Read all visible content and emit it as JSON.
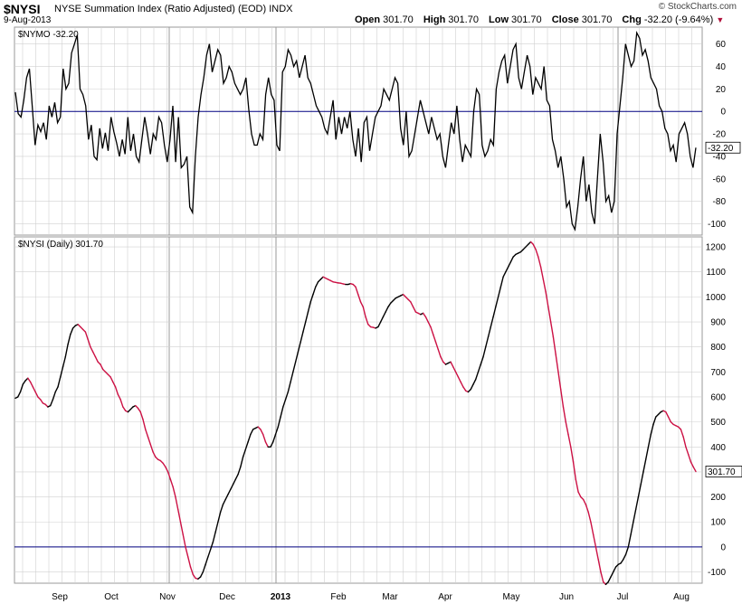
{
  "header": {
    "symbol": "$NYSI",
    "name": "NYSE Summation Index (Ratio Adjusted) (EOD)",
    "exchange": "INDX",
    "date": "9-Aug-2013",
    "brand": "© StockCharts.com",
    "open_label": "Open",
    "open": "301.70",
    "high_label": "High",
    "high": "301.70",
    "low_label": "Low",
    "low": "301.70",
    "close_label": "Close",
    "close": "301.70",
    "chg_label": "Chg",
    "chg": "-32.20 (-9.64%)"
  },
  "colors": {
    "rising": "#000000",
    "falling": "#cc1144",
    "zero_line": "#000080",
    "grid": "#d0d0d0",
    "frame": "#9a9a9a"
  },
  "chart_data": [
    {
      "type": "line",
      "title": "$NYMO -32.20",
      "ylim": [
        -110,
        75
      ],
      "y_ticks": [
        60,
        40,
        20,
        0,
        -20,
        -40,
        -60,
        -80,
        -100
      ],
      "last_value_label": "-32.20",
      "x_labels": [
        "Sep",
        "Oct",
        "Nov",
        "Dec",
        "2013",
        "Feb",
        "Mar",
        "Apr",
        "May",
        "Jun",
        "Jul",
        "Aug"
      ],
      "grid": true,
      "series": [
        {
          "name": "$NYMO",
          "values": [
            17,
            -2,
            -5,
            10,
            30,
            38,
            5,
            -30,
            -12,
            -18,
            -10,
            -25,
            5,
            -5,
            8,
            -10,
            -5,
            38,
            20,
            25,
            52,
            60,
            68,
            20,
            15,
            5,
            -25,
            -12,
            -40,
            -43,
            -15,
            -33,
            -19,
            -35,
            -5,
            -18,
            -28,
            -40,
            -25,
            -38,
            -5,
            -35,
            -20,
            -40,
            -45,
            -25,
            -5,
            -20,
            -38,
            -20,
            -25,
            -5,
            -10,
            -30,
            -45,
            -25,
            5,
            -45,
            -5,
            -50,
            -47,
            -40,
            -85,
            -90,
            -40,
            -5,
            15,
            30,
            50,
            60,
            35,
            45,
            55,
            50,
            25,
            30,
            40,
            35,
            25,
            20,
            15,
            20,
            30,
            2,
            -20,
            -30,
            -30,
            -20,
            -25,
            15,
            30,
            15,
            10,
            -30,
            -35,
            35,
            40,
            55,
            50,
            40,
            45,
            30,
            40,
            50,
            30,
            25,
            15,
            5,
            0,
            -5,
            -15,
            -20,
            -5,
            10,
            -25,
            -5,
            -20,
            -5,
            -15,
            0,
            -25,
            -40,
            -15,
            -45,
            -10,
            -5,
            -35,
            -20,
            -5,
            0,
            5,
            20,
            15,
            10,
            20,
            30,
            25,
            -15,
            -30,
            0,
            -40,
            -35,
            -20,
            -5,
            10,
            0,
            -10,
            -20,
            -5,
            -15,
            -25,
            -20,
            -40,
            -50,
            -30,
            -10,
            -20,
            5,
            -25,
            -45,
            -30,
            -35,
            -40,
            0,
            20,
            15,
            -30,
            -40,
            -35,
            -25,
            -30,
            20,
            35,
            45,
            50,
            25,
            40,
            55,
            60,
            30,
            20,
            35,
            50,
            40,
            15,
            30,
            25,
            20,
            40,
            10,
            5,
            -25,
            -35,
            -50,
            -40,
            -60,
            -85,
            -80,
            -100,
            -105,
            -85,
            -60,
            -40,
            -80,
            -65,
            -90,
            -100,
            -60,
            -20,
            -45,
            -80,
            -75,
            -90,
            -80,
            -20,
            5,
            30,
            60,
            50,
            40,
            45,
            70,
            65,
            50,
            55,
            45,
            30,
            25,
            20,
            5,
            0,
            -15,
            -20,
            -35,
            -30,
            -45,
            -20,
            -15,
            -10,
            -20,
            -40,
            -50,
            -32.2
          ]
        }
      ]
    },
    {
      "type": "line",
      "title": "$NYSI (Daily) 301.70",
      "ylim": [
        -145,
        1240
      ],
      "y_ticks": [
        1200,
        1100,
        1000,
        900,
        800,
        700,
        600,
        500,
        400,
        300,
        200,
        100,
        0,
        -100
      ],
      "last_value_label": "301.70",
      "x_labels": [
        "Sep",
        "Oct",
        "Nov",
        "Dec",
        "2013",
        "Feb",
        "Mar",
        "Apr",
        "May",
        "Jun",
        "Jul",
        "Aug"
      ],
      "grid": true,
      "series": [
        {
          "name": "$NYSI (Daily)",
          "values": [
            595,
            600,
            620,
            650,
            665,
            675,
            660,
            640,
            620,
            600,
            590,
            575,
            570,
            560,
            565,
            590,
            620,
            640,
            680,
            720,
            760,
            810,
            850,
            875,
            885,
            890,
            880,
            870,
            860,
            830,
            800,
            780,
            760,
            740,
            730,
            710,
            700,
            690,
            680,
            660,
            640,
            610,
            590,
            560,
            545,
            540,
            550,
            560,
            565,
            555,
            540,
            510,
            470,
            440,
            410,
            380,
            360,
            350,
            345,
            335,
            320,
            300,
            270,
            240,
            200,
            150,
            100,
            50,
            0,
            -40,
            -80,
            -110,
            -125,
            -128,
            -120,
            -100,
            -70,
            -40,
            -10,
            20,
            60,
            100,
            140,
            170,
            190,
            210,
            230,
            250,
            270,
            290,
            320,
            360,
            390,
            420,
            450,
            470,
            475,
            480,
            470,
            450,
            420,
            400,
            400,
            420,
            450,
            480,
            520,
            560,
            590,
            620,
            660,
            700,
            740,
            780,
            820,
            860,
            900,
            940,
            980,
            1010,
            1040,
            1060,
            1070,
            1080,
            1075,
            1070,
            1065,
            1060,
            1058,
            1056,
            1055,
            1052,
            1050,
            1050,
            1053,
            1050,
            1040,
            1010,
            980,
            960,
            920,
            890,
            880,
            878,
            875,
            880,
            900,
            920,
            940,
            960,
            975,
            985,
            995,
            1000,
            1005,
            1010,
            1000,
            990,
            980,
            960,
            940,
            935,
            930,
            935,
            920,
            900,
            880,
            850,
            820,
            790,
            760,
            740,
            730,
            735,
            740,
            720,
            700,
            680,
            660,
            640,
            625,
            620,
            630,
            650,
            670,
            700,
            730,
            760,
            800,
            840,
            880,
            920,
            960,
            1000,
            1040,
            1080,
            1100,
            1120,
            1140,
            1160,
            1170,
            1175,
            1180,
            1190,
            1200,
            1210,
            1220,
            1210,
            1190,
            1160,
            1120,
            1070,
            1020,
            960,
            900,
            840,
            770,
            700,
            630,
            560,
            500,
            450,
            400,
            340,
            270,
            220,
            200,
            190,
            170,
            140,
            100,
            50,
            0,
            -50,
            -100,
            -140,
            -150,
            -140,
            -120,
            -100,
            -80,
            -70,
            -65,
            -50,
            -30,
            0,
            50,
            100,
            150,
            200,
            250,
            300,
            350,
            400,
            450,
            490,
            520,
            530,
            540,
            545,
            540,
            520,
            500,
            490,
            485,
            480,
            470,
            440,
            400,
            370,
            340,
            320,
            301.7
          ]
        }
      ]
    }
  ]
}
